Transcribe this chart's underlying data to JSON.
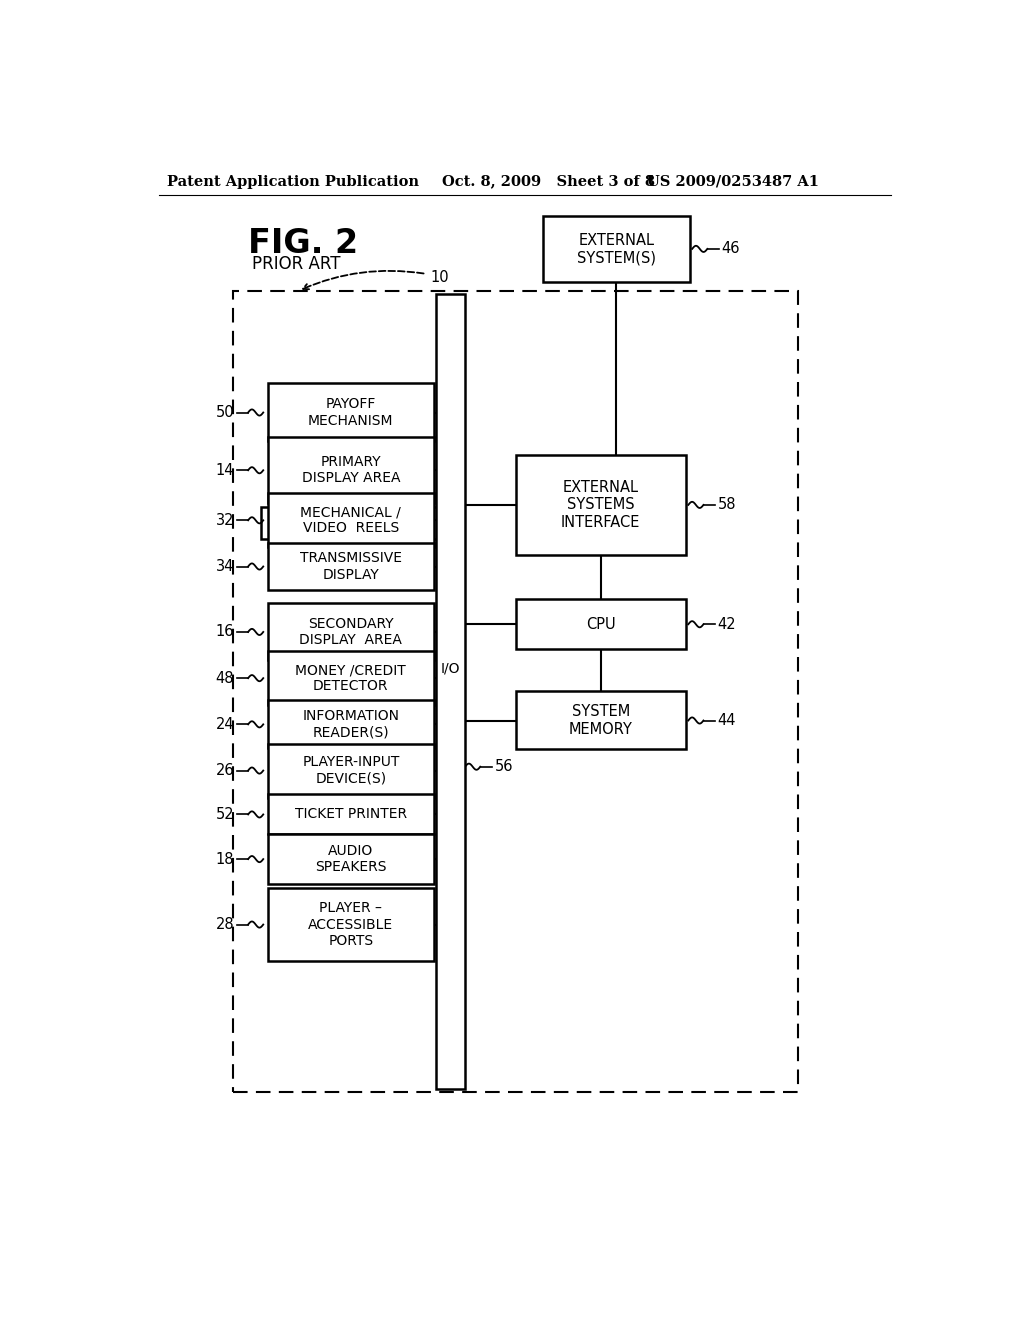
{
  "bg_color": "#ffffff",
  "header_left": "Patent Application Publication",
  "header_mid": "Oct. 8, 2009   Sheet 3 of 8",
  "header_right": "US 2009/0253487 A1",
  "fig_label": "FIG. 2",
  "fig_sublabel": "PRIOR ART",
  "left_labels": [
    "PAYOFF\nMECHANISM",
    "PRIMARY\nDISPLAY AREA",
    "MECHANICAL /\nVIDEO  REELS",
    "TRANSMISSIVE\nDISPLAY",
    "SECONDARY\nDISPLAY  AREA",
    "MONEY /CREDIT\nDETECTOR",
    "INFORMATION\nREADER(S)",
    "PLAYER-INPUT\nDEVICE(S)",
    "TICKET PRINTER",
    "AUDIO\nSPEAKERS",
    "PLAYER –\nACCESSIBLE\nPORTS"
  ],
  "left_refs": [
    "50",
    "14",
    "32",
    "34",
    "16",
    "48",
    "24",
    "26",
    "52",
    "18",
    "28"
  ],
  "right_labels": [
    "EXTERNAL\nSYSTEMS\nINTERFACE",
    "CPU",
    "SYSTEM\nMEMORY"
  ],
  "right_refs": [
    "58",
    "42",
    "44"
  ],
  "external_label": "EXTERNAL\nSYSTEM(S)",
  "external_ref": "46",
  "io_label": "I/O",
  "io_ref": "56"
}
